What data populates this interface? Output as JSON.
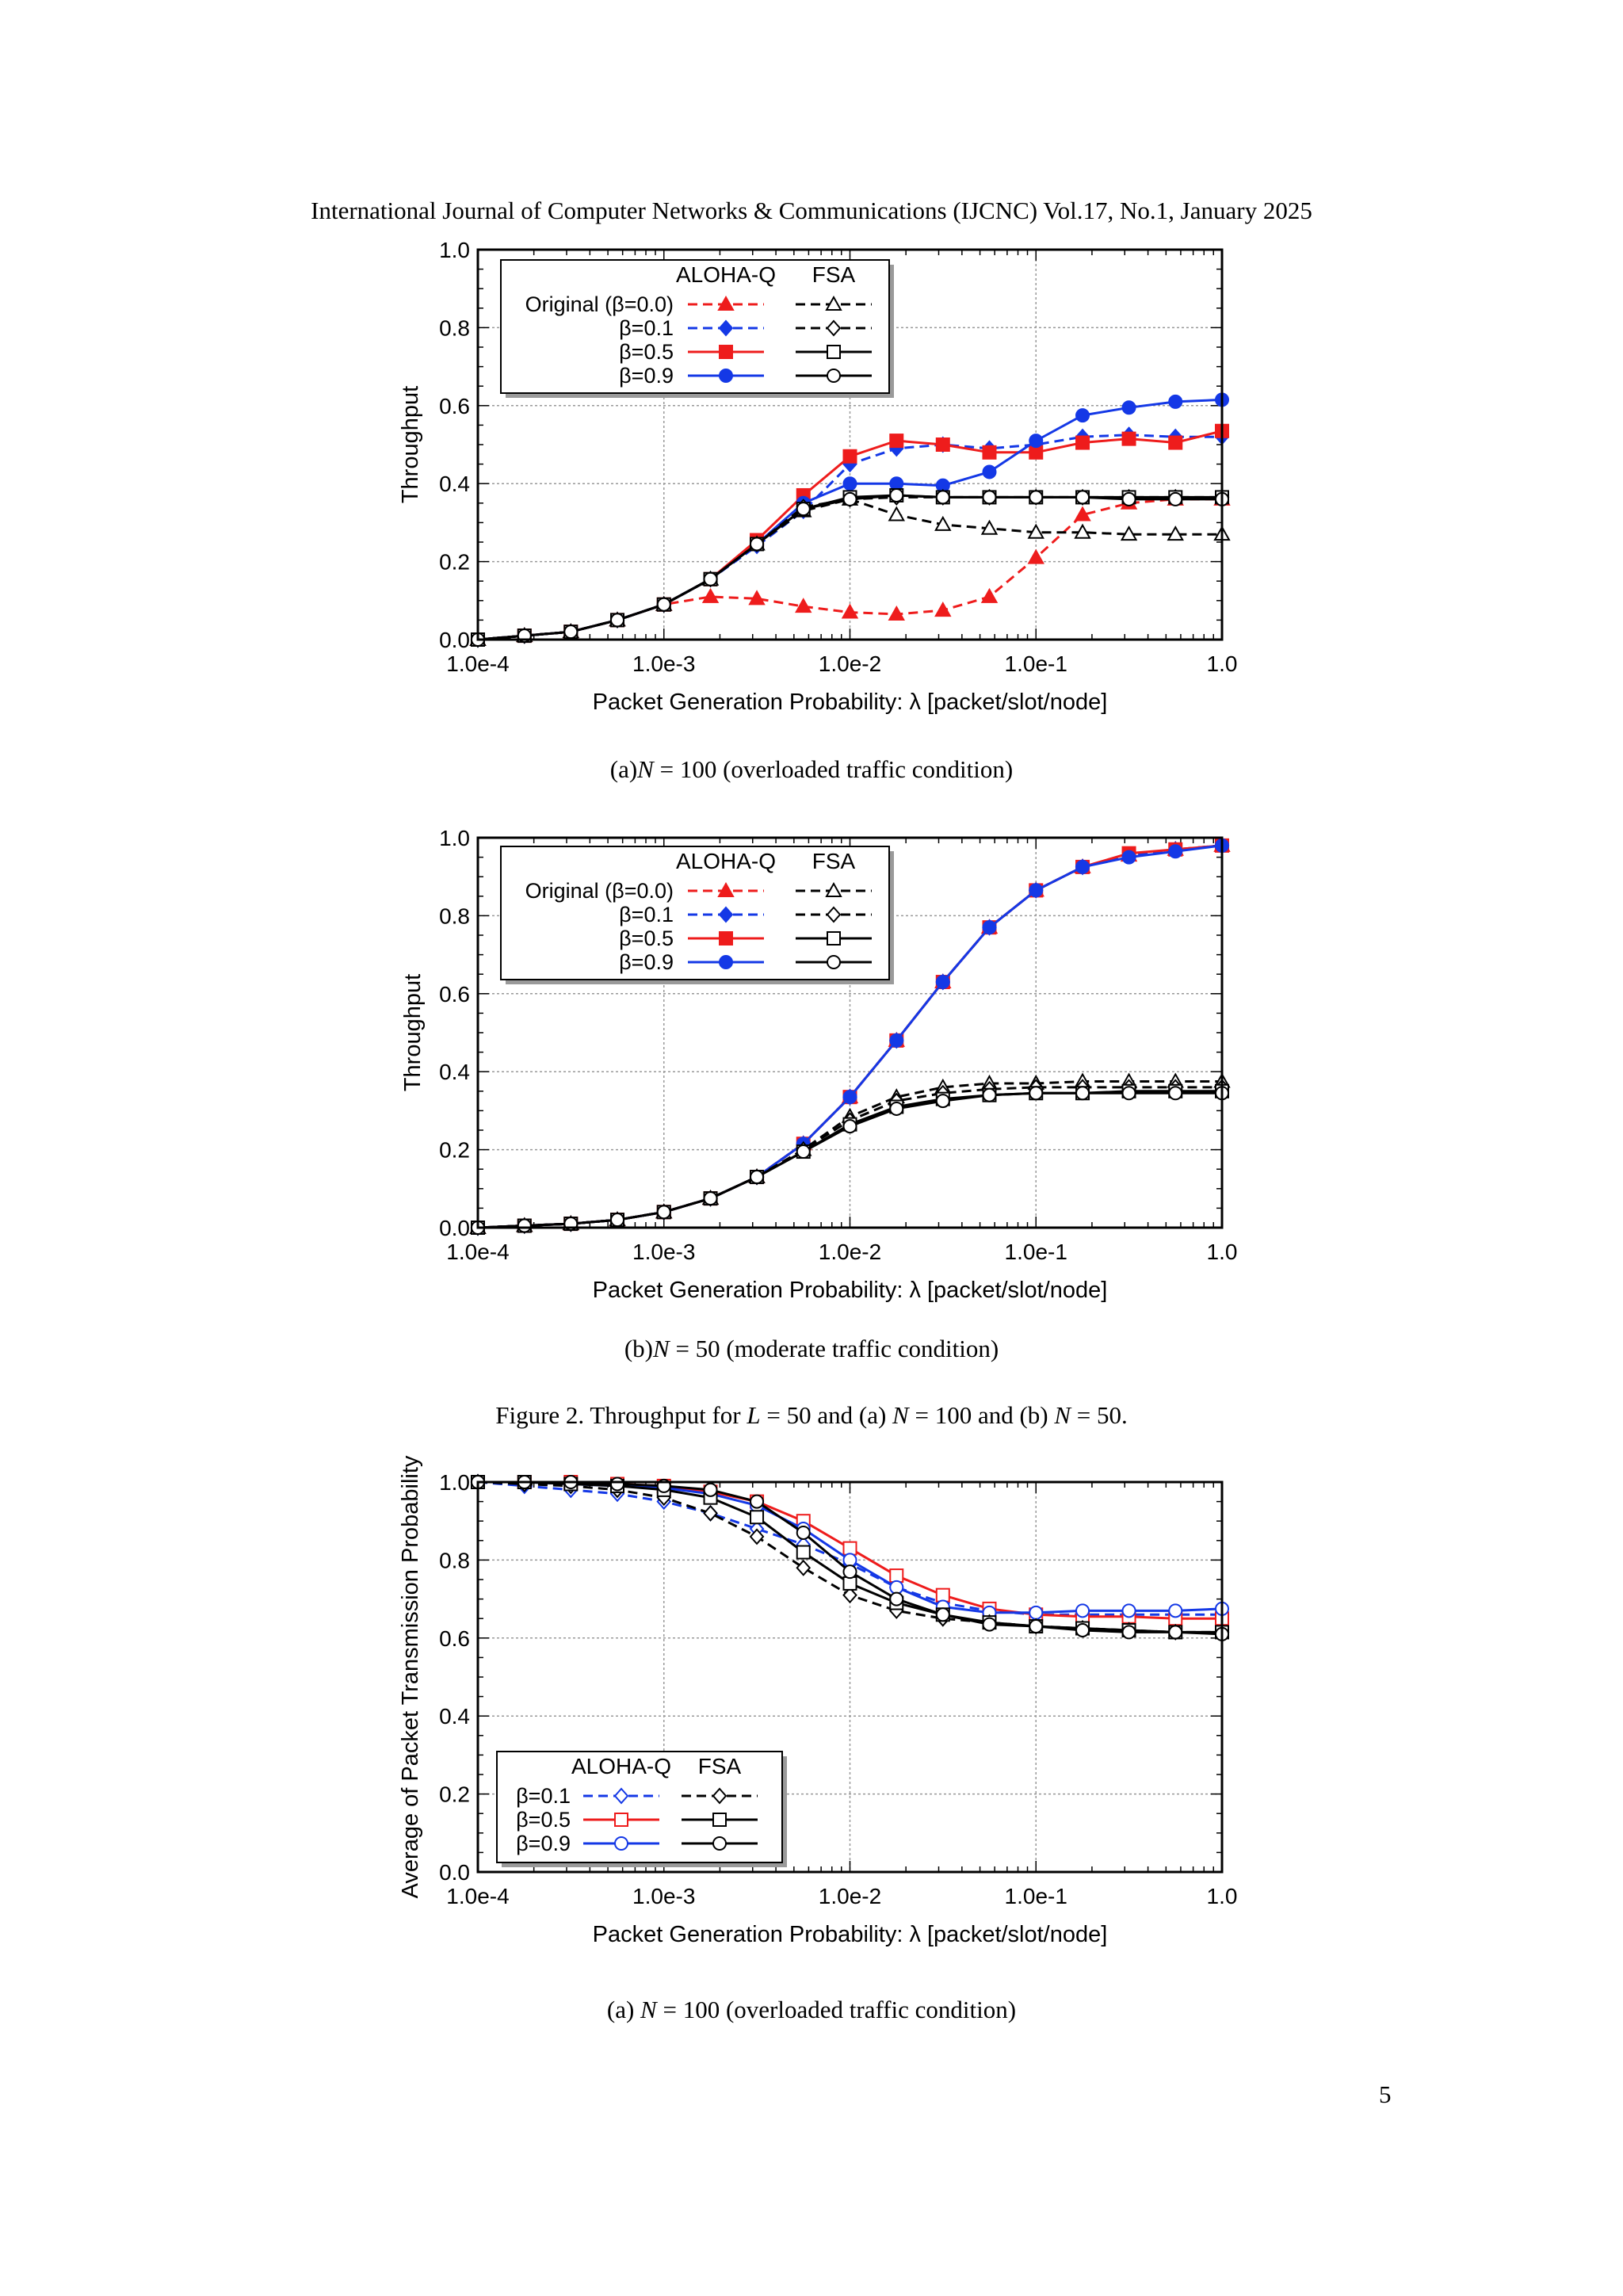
{
  "header": "International Journal of Computer Networks & Communications (IJCNC) Vol.17, No.1, January 2025",
  "page_number": "5",
  "captions": {
    "a": "(a)N = 100 (overloaded traffic condition)",
    "b": "(b)N = 50 (moderate traffic condition)",
    "figure": "Figure 2.  Throughput for L = 50 and (a) N = 100 and (b) N = 50.",
    "c": "(a) N = 100 (overloaded traffic condition)"
  },
  "colors": {
    "red": "#ee1c1c",
    "blue": "#1438e6",
    "black": "#000000",
    "grid": "#999999"
  },
  "chart_data": [
    {
      "type": "line",
      "xlabel": "Packet Generation Probability:  λ [packet/slot/node]",
      "ylabel": "Throughput",
      "x_scale": "log",
      "xlim": [
        0.0001,
        1.0
      ],
      "ylim": [
        0.0,
        1.0
      ],
      "x_ticks": [
        "1.0e-4",
        "1.0e-3",
        "1.0e-2",
        "1.0e-1",
        "1.0"
      ],
      "y_ticks": [
        "0.0",
        "0.2",
        "0.4",
        "0.6",
        "0.8",
        "1.0"
      ],
      "grid": true,
      "legend": {
        "position": "top-left",
        "columns": [
          "ALOHA-Q",
          "FSA"
        ],
        "rows": [
          "Original (β=0.0)",
          "β=0.1",
          "β=0.5",
          "β=0.9"
        ]
      },
      "x": [
        0.0001,
        0.000178,
        0.000316,
        0.000562,
        0.001,
        0.00178,
        0.00316,
        0.00562,
        0.01,
        0.0178,
        0.0316,
        0.0562,
        0.1,
        0.178,
        0.316,
        0.562,
        1.0
      ],
      "series": [
        {
          "name": "Original (β=0.0)",
          "group": "ALOHA-Q",
          "color": "red",
          "dash": true,
          "marker": "triangle",
          "fill": true,
          "values": [
            0.0,
            0.01,
            0.02,
            0.05,
            0.09,
            0.11,
            0.105,
            0.085,
            0.07,
            0.065,
            0.075,
            0.11,
            0.21,
            0.32,
            0.35,
            0.36,
            0.36
          ]
        },
        {
          "name": "β=0.1",
          "group": "ALOHA-Q",
          "color": "blue",
          "dash": true,
          "marker": "diamond",
          "fill": true,
          "values": [
            0.0,
            0.01,
            0.02,
            0.05,
            0.09,
            0.155,
            0.24,
            0.33,
            0.45,
            0.49,
            0.5,
            0.49,
            0.5,
            0.52,
            0.525,
            0.52,
            0.52
          ]
        },
        {
          "name": "β=0.5",
          "group": "ALOHA-Q",
          "color": "red",
          "dash": false,
          "marker": "square",
          "fill": true,
          "values": [
            0.0,
            0.01,
            0.02,
            0.05,
            0.09,
            0.155,
            0.255,
            0.37,
            0.47,
            0.51,
            0.5,
            0.48,
            0.48,
            0.505,
            0.515,
            0.505,
            0.535
          ]
        },
        {
          "name": "β=0.9",
          "group": "ALOHA-Q",
          "color": "blue",
          "dash": false,
          "marker": "circle",
          "fill": true,
          "values": [
            0.0,
            0.01,
            0.02,
            0.05,
            0.09,
            0.155,
            0.245,
            0.35,
            0.4,
            0.4,
            0.395,
            0.43,
            0.51,
            0.575,
            0.595,
            0.61,
            0.615
          ]
        },
        {
          "name": "Original (β=0.0)",
          "group": "FSA",
          "color": "black",
          "dash": true,
          "marker": "triangle",
          "fill": false,
          "values": [
            0.0,
            0.01,
            0.02,
            0.05,
            0.09,
            0.155,
            0.245,
            0.33,
            0.36,
            0.32,
            0.295,
            0.285,
            0.275,
            0.275,
            0.27,
            0.27,
            0.27
          ]
        },
        {
          "name": "β=0.1",
          "group": "FSA",
          "color": "black",
          "dash": true,
          "marker": "diamond",
          "fill": false,
          "values": [
            0.0,
            0.01,
            0.02,
            0.05,
            0.09,
            0.155,
            0.245,
            0.34,
            0.36,
            0.365,
            0.365,
            0.365,
            0.365,
            0.365,
            0.365,
            0.365,
            0.365
          ]
        },
        {
          "name": "β=0.5",
          "group": "FSA",
          "color": "black",
          "dash": false,
          "marker": "square",
          "fill": false,
          "values": [
            0.0,
            0.01,
            0.02,
            0.05,
            0.09,
            0.155,
            0.245,
            0.335,
            0.365,
            0.37,
            0.365,
            0.365,
            0.365,
            0.365,
            0.365,
            0.365,
            0.365
          ]
        },
        {
          "name": "β=0.9",
          "group": "FSA",
          "color": "black",
          "dash": false,
          "marker": "circle",
          "fill": false,
          "values": [
            0.0,
            0.01,
            0.02,
            0.05,
            0.09,
            0.155,
            0.245,
            0.335,
            0.36,
            0.37,
            0.365,
            0.365,
            0.365,
            0.365,
            0.36,
            0.36,
            0.36
          ]
        }
      ]
    },
    {
      "type": "line",
      "xlabel": "Packet Generation Probability:  λ [packet/slot/node]",
      "ylabel": "Throughput",
      "x_scale": "log",
      "xlim": [
        0.0001,
        1.0
      ],
      "ylim": [
        0.0,
        1.0
      ],
      "x_ticks": [
        "1.0e-4",
        "1.0e-3",
        "1.0e-2",
        "1.0e-1",
        "1.0"
      ],
      "y_ticks": [
        "0.0",
        "0.2",
        "0.4",
        "0.6",
        "0.8",
        "1.0"
      ],
      "grid": true,
      "legend": {
        "position": "top-left",
        "columns": [
          "ALOHA-Q",
          "FSA"
        ],
        "rows": [
          "Original (β=0.0)",
          "β=0.1",
          "β=0.5",
          "β=0.9"
        ]
      },
      "x": [
        0.0001,
        0.000178,
        0.000316,
        0.000562,
        0.001,
        0.00178,
        0.00316,
        0.00562,
        0.01,
        0.0178,
        0.0316,
        0.0562,
        0.1,
        0.178,
        0.316,
        0.562,
        1.0
      ],
      "series": [
        {
          "name": "Original (β=0.0)",
          "group": "ALOHA-Q",
          "color": "red",
          "dash": true,
          "marker": "triangle",
          "fill": true,
          "values": [
            0.0,
            0.005,
            0.01,
            0.02,
            0.04,
            0.075,
            0.13,
            0.215,
            0.335,
            0.48,
            0.63,
            0.77,
            0.865,
            0.925,
            0.955,
            0.97,
            0.98
          ]
        },
        {
          "name": "β=0.1",
          "group": "ALOHA-Q",
          "color": "blue",
          "dash": true,
          "marker": "diamond",
          "fill": true,
          "values": [
            0.0,
            0.005,
            0.01,
            0.02,
            0.04,
            0.075,
            0.13,
            0.215,
            0.335,
            0.48,
            0.63,
            0.77,
            0.865,
            0.925,
            0.955,
            0.97,
            0.98
          ]
        },
        {
          "name": "β=0.5",
          "group": "ALOHA-Q",
          "color": "red",
          "dash": false,
          "marker": "square",
          "fill": true,
          "values": [
            0.0,
            0.005,
            0.01,
            0.02,
            0.04,
            0.075,
            0.13,
            0.215,
            0.335,
            0.48,
            0.63,
            0.77,
            0.865,
            0.925,
            0.96,
            0.97,
            0.98
          ]
        },
        {
          "name": "β=0.9",
          "group": "ALOHA-Q",
          "color": "blue",
          "dash": false,
          "marker": "circle",
          "fill": true,
          "values": [
            0.0,
            0.005,
            0.01,
            0.02,
            0.04,
            0.075,
            0.13,
            0.215,
            0.335,
            0.48,
            0.63,
            0.77,
            0.865,
            0.925,
            0.95,
            0.965,
            0.98
          ]
        },
        {
          "name": "Original (β=0.0)",
          "group": "FSA",
          "color": "black",
          "dash": true,
          "marker": "triangle",
          "fill": false,
          "values": [
            0.0,
            0.005,
            0.01,
            0.02,
            0.04,
            0.075,
            0.13,
            0.2,
            0.285,
            0.335,
            0.36,
            0.37,
            0.37,
            0.375,
            0.375,
            0.375,
            0.375
          ]
        },
        {
          "name": "β=0.1",
          "group": "FSA",
          "color": "black",
          "dash": true,
          "marker": "diamond",
          "fill": false,
          "values": [
            0.0,
            0.005,
            0.01,
            0.02,
            0.04,
            0.075,
            0.13,
            0.2,
            0.275,
            0.325,
            0.345,
            0.355,
            0.36,
            0.36,
            0.36,
            0.36,
            0.36
          ]
        },
        {
          "name": "β=0.5",
          "group": "FSA",
          "color": "black",
          "dash": false,
          "marker": "square",
          "fill": false,
          "values": [
            0.0,
            0.005,
            0.01,
            0.02,
            0.04,
            0.075,
            0.13,
            0.195,
            0.265,
            0.31,
            0.33,
            0.34,
            0.345,
            0.345,
            0.35,
            0.35,
            0.35
          ]
        },
        {
          "name": "β=0.9",
          "group": "FSA",
          "color": "black",
          "dash": false,
          "marker": "circle",
          "fill": false,
          "values": [
            0.0,
            0.005,
            0.01,
            0.02,
            0.04,
            0.075,
            0.13,
            0.195,
            0.26,
            0.305,
            0.325,
            0.34,
            0.345,
            0.345,
            0.345,
            0.345,
            0.345
          ]
        }
      ]
    },
    {
      "type": "line",
      "xlabel": "Packet Generation Probability:  λ [packet/slot/node]",
      "ylabel": "Average of Packet Transmission Probability",
      "x_scale": "log",
      "xlim": [
        0.0001,
        1.0
      ],
      "ylim": [
        0.0,
        1.0
      ],
      "x_ticks": [
        "1.0e-4",
        "1.0e-3",
        "1.0e-2",
        "1.0e-1",
        "1.0"
      ],
      "y_ticks": [
        "0.0",
        "0.2",
        "0.4",
        "0.6",
        "0.8",
        "1.0"
      ],
      "grid": true,
      "legend": {
        "position": "bottom-left",
        "columns": [
          "ALOHA-Q",
          "FSA"
        ],
        "rows": [
          "β=0.1",
          "β=0.5",
          "β=0.9"
        ]
      },
      "x": [
        0.0001,
        0.000178,
        0.000316,
        0.000562,
        0.001,
        0.00178,
        0.00316,
        0.00562,
        0.01,
        0.0178,
        0.0316,
        0.0562,
        0.1,
        0.178,
        0.316,
        0.562,
        1.0
      ],
      "series": [
        {
          "name": "β=0.1",
          "group": "ALOHA-Q",
          "color": "blue",
          "dash": true,
          "marker": "diamond",
          "fill": false,
          "values": [
            1.0,
            0.99,
            0.98,
            0.97,
            0.95,
            0.92,
            0.88,
            0.84,
            0.79,
            0.73,
            0.69,
            0.67,
            0.66,
            0.66,
            0.66,
            0.66,
            0.66
          ]
        },
        {
          "name": "β=0.5",
          "group": "ALOHA-Q",
          "color": "red",
          "dash": false,
          "marker": "square",
          "fill": false,
          "values": [
            1.0,
            1.0,
            1.0,
            0.995,
            0.99,
            0.975,
            0.95,
            0.9,
            0.83,
            0.76,
            0.71,
            0.675,
            0.66,
            0.655,
            0.655,
            0.65,
            0.65
          ]
        },
        {
          "name": "β=0.9",
          "group": "ALOHA-Q",
          "color": "blue",
          "dash": false,
          "marker": "circle",
          "fill": false,
          "values": [
            1.0,
            1.0,
            0.995,
            0.99,
            0.985,
            0.97,
            0.94,
            0.88,
            0.8,
            0.73,
            0.68,
            0.665,
            0.665,
            0.67,
            0.67,
            0.67,
            0.675
          ]
        },
        {
          "name": "β=0.1",
          "group": "FSA",
          "color": "black",
          "dash": true,
          "marker": "diamond",
          "fill": false,
          "values": [
            1.0,
            0.995,
            0.99,
            0.98,
            0.96,
            0.92,
            0.86,
            0.78,
            0.71,
            0.67,
            0.65,
            0.64,
            0.63,
            0.625,
            0.62,
            0.615,
            0.615
          ]
        },
        {
          "name": "β=0.5",
          "group": "FSA",
          "color": "black",
          "dash": false,
          "marker": "square",
          "fill": false,
          "values": [
            1.0,
            1.0,
            0.995,
            0.99,
            0.98,
            0.96,
            0.91,
            0.82,
            0.74,
            0.69,
            0.66,
            0.64,
            0.63,
            0.625,
            0.62,
            0.615,
            0.615
          ]
        },
        {
          "name": "β=0.9",
          "group": "FSA",
          "color": "black",
          "dash": false,
          "marker": "circle",
          "fill": false,
          "values": [
            1.0,
            1.0,
            1.0,
            0.995,
            0.99,
            0.98,
            0.95,
            0.87,
            0.77,
            0.7,
            0.66,
            0.635,
            0.63,
            0.62,
            0.615,
            0.615,
            0.61
          ]
        }
      ]
    }
  ]
}
